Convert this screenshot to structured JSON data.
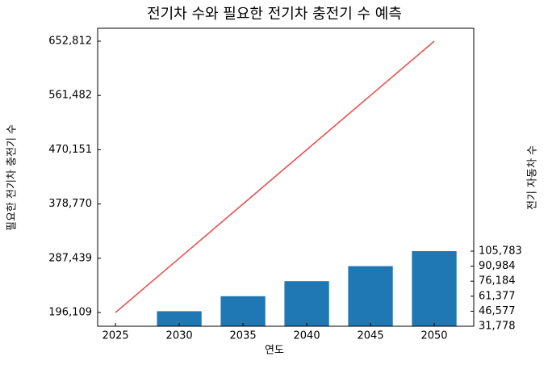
{
  "chart_data": {
    "type": "bar_line",
    "title": "전기차 수와 필요한 전기차 충전기 수 예측",
    "x_label": "연도",
    "y_label": "필요한 전기차 충전기 수",
    "y2_label": "전기 자동차 수",
    "x": [
      2025,
      2030,
      2035,
      2040,
      2045,
      2050
    ],
    "xlim": [
      2023.6,
      2053.1
    ],
    "xticks": [
      2025,
      2030,
      2035,
      2040,
      2045,
      2050
    ],
    "ylim": [
      173000,
      674560
    ],
    "yticks": [
      {
        "value": 196109,
        "label": "196,109"
      },
      {
        "value": 287439,
        "label": "287,439"
      },
      {
        "value": 378770,
        "label": "378,770"
      },
      {
        "value": 470151,
        "label": "470,151"
      },
      {
        "value": 561482,
        "label": "561,482"
      },
      {
        "value": 652812,
        "label": "652,812"
      }
    ],
    "y2lim": [
      31778,
      325400
    ],
    "y2ticks": [
      {
        "value": 31778,
        "label": "31,778"
      },
      {
        "value": 46577,
        "label": "46,577"
      },
      {
        "value": 61377,
        "label": "61,377"
      },
      {
        "value": 76184,
        "label": "76,184"
      },
      {
        "value": 90984,
        "label": "90,984"
      },
      {
        "value": 105783,
        "label": "105,783"
      }
    ],
    "series": [
      {
        "kind": "bar",
        "axis": "y2",
        "color": "#1f77b4",
        "values": [
          31778,
          46577,
          61377,
          76184,
          90984,
          105783
        ]
      },
      {
        "kind": "line",
        "axis": "y",
        "color": "#ef4f4f",
        "values": [
          196109,
          287439,
          378770,
          470151,
          561482,
          652812
        ]
      }
    ]
  }
}
